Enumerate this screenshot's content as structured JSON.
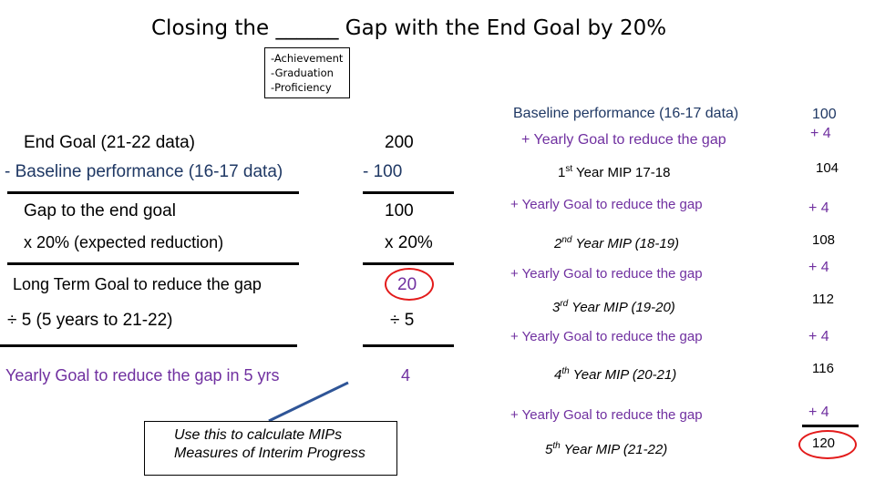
{
  "title": "Closing the ______ Gap with the End Goal by 20%",
  "gap_options": [
    "-Achievement",
    "-Graduation",
    "-Proficiency"
  ],
  "left": {
    "end_goal_label": "End Goal (21-22 data)",
    "baseline_label": "- Baseline performance (16-17 data)",
    "end_goal_value": "200",
    "baseline_value": "- 100",
    "gap_label": "Gap to the end goal",
    "gap_value": "100",
    "reduction_label": "x 20% (expected reduction)",
    "reduction_value": "x 20%",
    "long_term_label": "Long Term Goal to reduce the gap",
    "long_term_value": "20",
    "divide_label": "÷ 5 (5 years to 21-22)",
    "divide_value": "÷ 5",
    "yearly_label": "Yearly Goal to reduce the gap in 5 yrs",
    "yearly_value": "4"
  },
  "note": {
    "line1": "Use this to calculate MIPs",
    "line2": "Measures of Interim Progress"
  },
  "right": {
    "baseline_label": "Baseline performance (16-17 data)",
    "baseline_value": "100",
    "yearly_label": "+ Yearly Goal to reduce the gap",
    "yearly_value": "+ 4",
    "step_label": "+ Yearly Goal to reduce the gap",
    "step_value": "+ 4",
    "mips": [
      {
        "ord": "1",
        "sup": "st",
        "label": " Year MIP 17-18",
        "value": "104"
      },
      {
        "ord": "2",
        "sup": "nd",
        "label": " Year MIP (18-19)",
        "value": "108"
      },
      {
        "ord": "3",
        "sup": "rd",
        "label": " Year MIP (19-20)",
        "value": "112"
      },
      {
        "ord": "4",
        "sup": "th",
        "label": " Year MIP (20-21)",
        "value": "116"
      },
      {
        "ord": "5",
        "sup": "th",
        "label": " Year MIP (21-22)",
        "value": "120"
      }
    ]
  },
  "colors": {
    "purple": "#7030a0",
    "blue": "#1f3864",
    "circle": "#e31b1b",
    "arrow": "#2f5597"
  }
}
